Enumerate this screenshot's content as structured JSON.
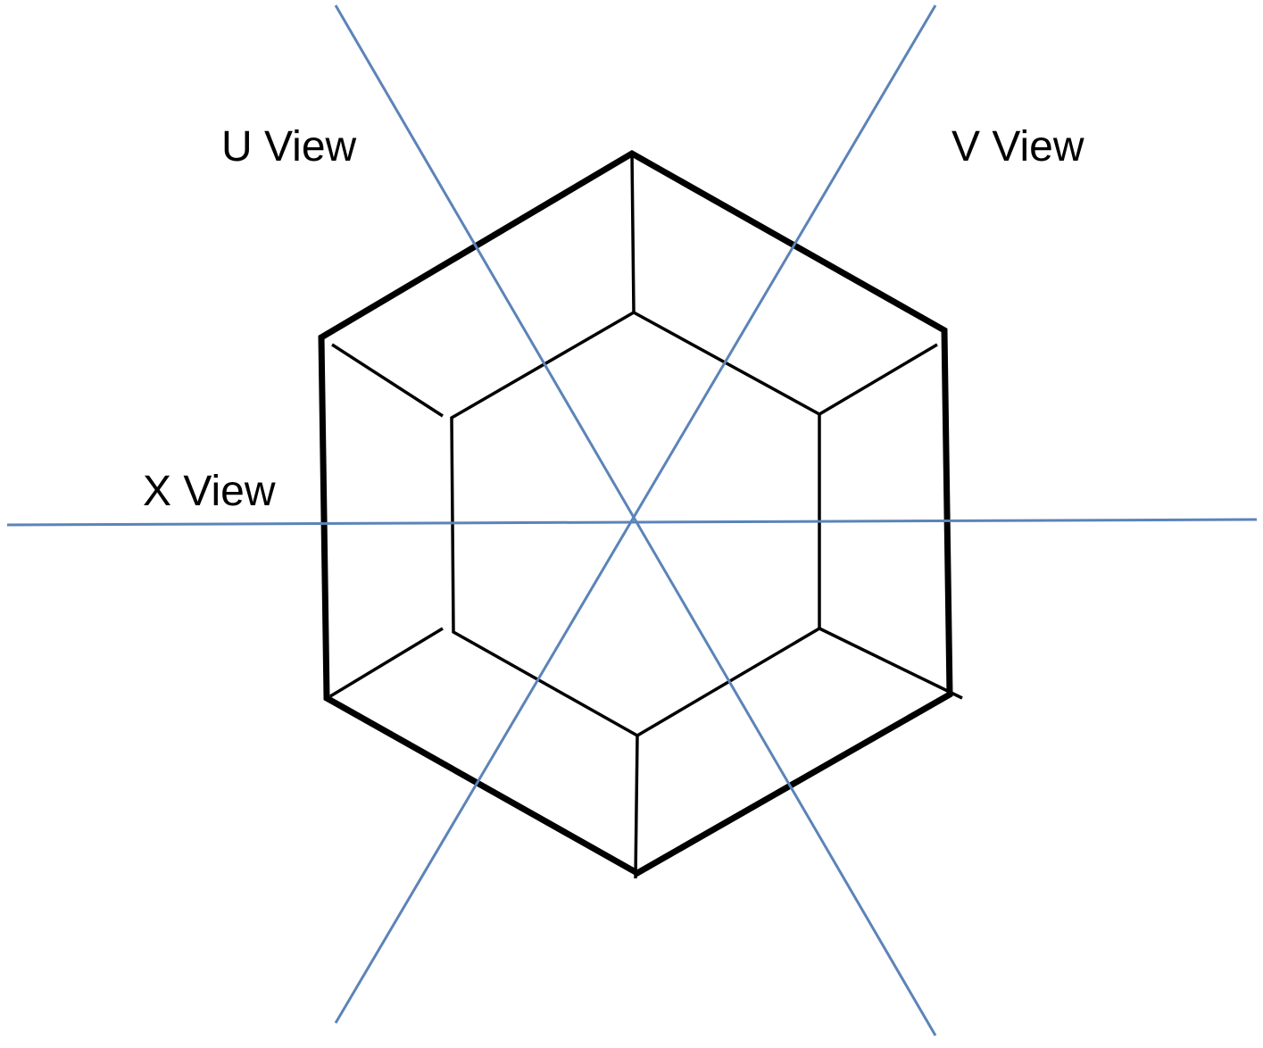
{
  "labels": {
    "u_view": "U View",
    "v_view": "V View",
    "x_view": "X View"
  },
  "colors": {
    "view_lines": "#5b84b8",
    "outline": "#000000",
    "background": "#ffffff"
  }
}
